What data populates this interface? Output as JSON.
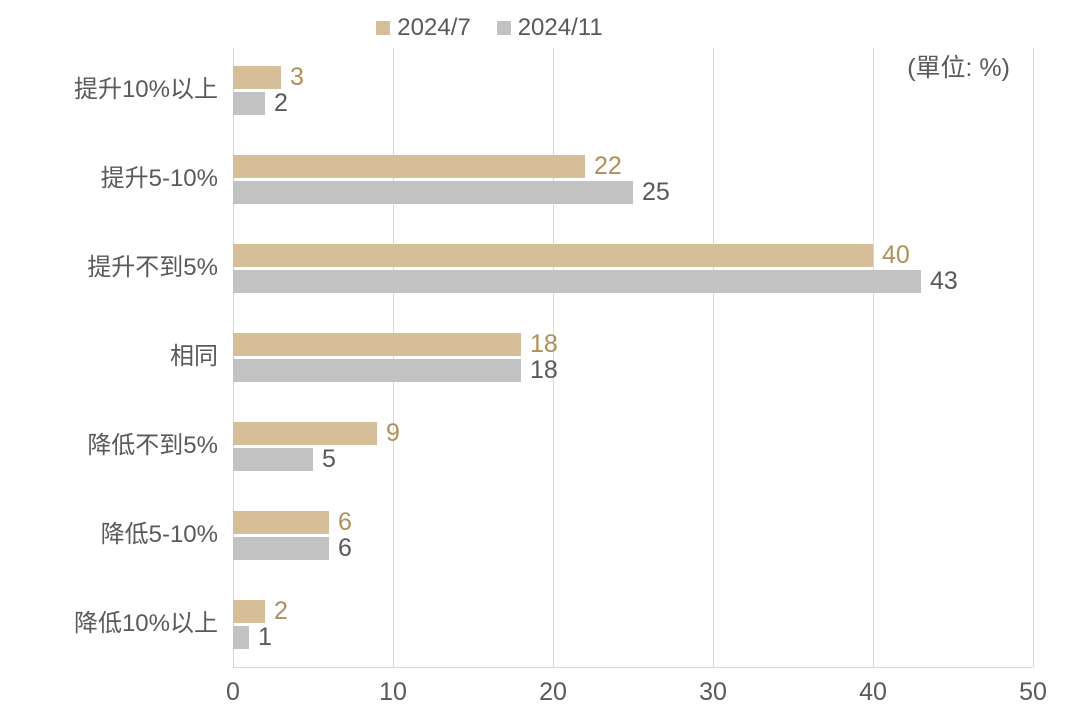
{
  "unit_label": "(單位: %)",
  "colors": {
    "series1_bar": "#D5BE98",
    "series1_label": "#B08F58",
    "series2_bar": "#C2C2C2",
    "series2_label": "#595959",
    "axis_text": "#595959",
    "gridline": "#D9D9D9",
    "background": "#FFFFFF"
  },
  "chart_data": {
    "type": "bar",
    "orientation": "horizontal",
    "title": "",
    "xlabel": "",
    "ylabel": "",
    "unit": "(單位: %)",
    "categories": [
      "提升10%以上",
      "提升5-10%",
      "提升不到5%",
      "相同",
      "降低不到5%",
      "降低5-10%",
      "降低10%以上"
    ],
    "series": [
      {
        "name": "2024/7",
        "color": "#D5BE98",
        "label_color": "#B08F58",
        "values": [
          3,
          22,
          40,
          18,
          9,
          6,
          2
        ]
      },
      {
        "name": "2024/11",
        "color": "#C2C2C2",
        "label_color": "#595959",
        "values": [
          2,
          25,
          43,
          18,
          5,
          6,
          1
        ]
      }
    ],
    "x_ticks": [
      0,
      10,
      20,
      30,
      40,
      50
    ],
    "xlim": [
      0,
      50
    ],
    "legend_position": "top",
    "grid": "vertical",
    "data_labels": true
  }
}
